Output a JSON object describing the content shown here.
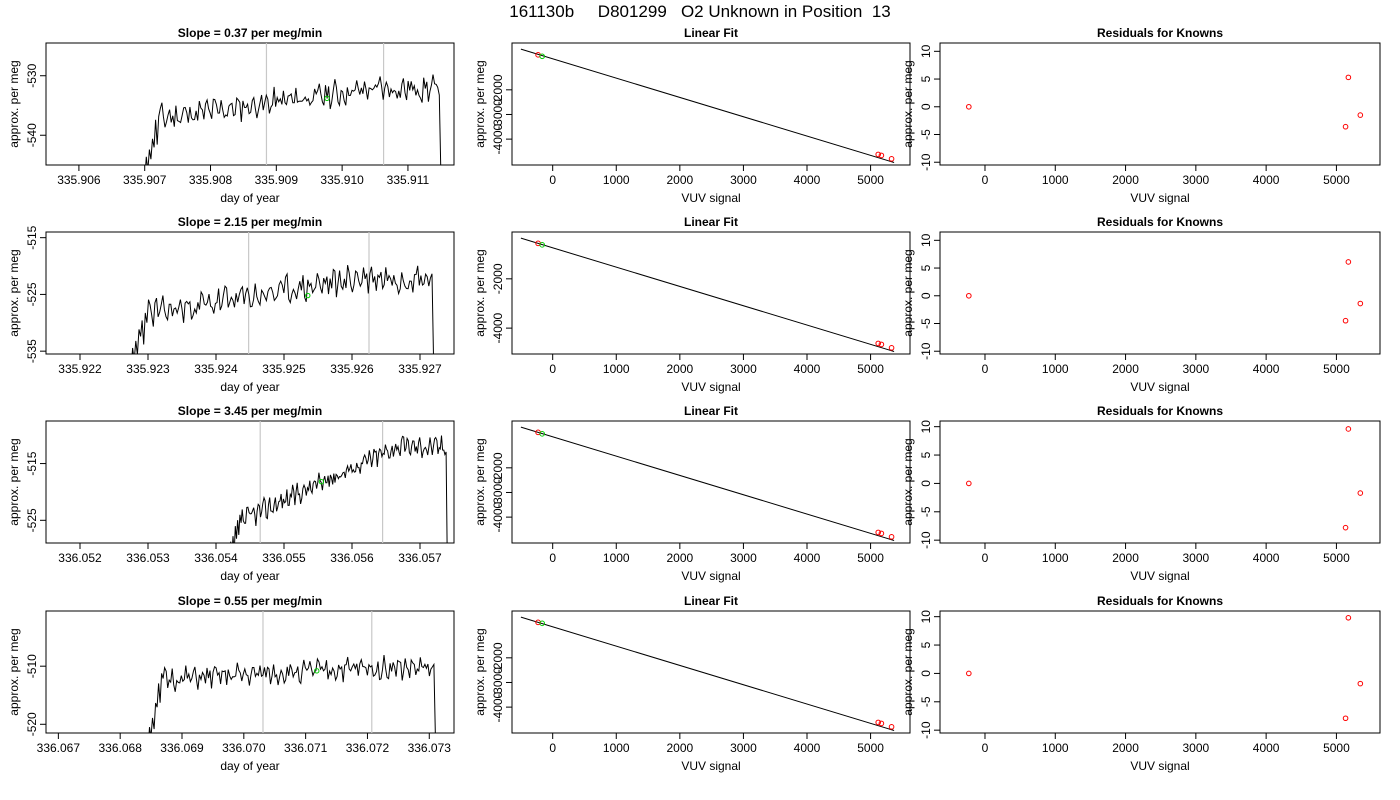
{
  "title": "161130b     D801299   O2 Unknown in Position  13",
  "colors": {
    "trace": "#000000",
    "gridline": "#c8c8c8",
    "known_point": "#ff0000",
    "unknown_point": "#00cc00",
    "fit_line": "#000000"
  },
  "rows": [
    {
      "time": {
        "title": "Slope =  0.37  per meg/min",
        "xlabel": "day of year",
        "ylabel": "approx. per meg",
        "xlim": [
          335.9055,
          335.9117
        ],
        "ylim": [
          -545,
          -524.5
        ],
        "xticks": [
          335.906,
          335.907,
          335.908,
          335.909,
          335.91,
          335.911
        ],
        "xtick_labels": [
          "335.906",
          "335.907",
          "335.908",
          "335.909",
          "335.910",
          "335.911"
        ],
        "yticks": [
          -530,
          -540
        ],
        "ytick_labels": [
          "-530",
          "-540"
        ],
        "vlines": [
          335.90885,
          335.91063
        ],
        "trace": {
          "x_start": 335.907,
          "x_end": 335.9115,
          "seed": 11,
          "base": [
            -537.5,
            -532.2
          ],
          "amp": 2.2,
          "head": [
            -546,
            -540
          ],
          "tail_end": -546
        },
        "unknown_marks": [
          {
            "x": 335.90977,
            "y": -533.8
          }
        ]
      },
      "fit": {
        "title": "Linear Fit",
        "xlabel": "VUV signal",
        "ylabel": "approx. per meg",
        "xlim": [
          -640,
          5620
        ],
        "ylim": [
          -5050,
          -100
        ],
        "xticks": [
          0,
          1000,
          2000,
          3000,
          4000,
          5000
        ],
        "xtick_labels": [
          "0",
          "1000",
          "2000",
          "3000",
          "4000",
          "5000"
        ],
        "yticks": [
          -2000,
          -3000,
          -4000
        ],
        "ytick_labels": [
          "-2000",
          "-3000",
          "-4000"
        ],
        "line": {
          "x": [
            -500,
            5370
          ],
          "y": [
            -350,
            -4950
          ]
        },
        "knowns": [
          {
            "x": -230,
            "y": -580
          },
          {
            "x": 5120,
            "y": -4620
          },
          {
            "x": 5170,
            "y": -4660
          },
          {
            "x": 5330,
            "y": -4800
          }
        ],
        "unknowns": [
          {
            "x": -165,
            "y": -640
          }
        ]
      },
      "resid": {
        "title": "Residuals for Knowns",
        "xlabel": "VUV signal",
        "ylabel": "approx. per meg",
        "xlim": [
          -640,
          5620
        ],
        "ylim": [
          -10.5,
          11.5
        ],
        "xticks": [
          0,
          1000,
          2000,
          3000,
          4000,
          5000
        ],
        "xtick_labels": [
          "0",
          "1000",
          "2000",
          "3000",
          "4000",
          "5000"
        ],
        "yticks": [
          -10,
          -5,
          0,
          5,
          10
        ],
        "ytick_labels": [
          "-10",
          "-5",
          "0",
          "5",
          "10"
        ],
        "points": [
          {
            "x": -230,
            "y": 0
          },
          {
            "x": 5130,
            "y": -3.6
          },
          {
            "x": 5170,
            "y": 5.3
          },
          {
            "x": 5340,
            "y": -1.5
          }
        ]
      }
    },
    {
      "time": {
        "title": "Slope =  2.15  per meg/min",
        "xlabel": "day of year",
        "ylabel": "approx. per meg",
        "xlim": [
          335.9215,
          335.9275
        ],
        "ylim": [
          -535.5,
          -514
        ],
        "xticks": [
          335.922,
          335.923,
          335.924,
          335.925,
          335.926,
          335.927
        ],
        "xtick_labels": [
          "335.922",
          "335.923",
          "335.924",
          "335.925",
          "335.926",
          "335.927"
        ],
        "yticks": [
          -515,
          -525,
          -535
        ],
        "ytick_labels": [
          "-515",
          "-525",
          "-535"
        ],
        "vlines": [
          335.92448,
          335.92625
        ],
        "trace": {
          "x_start": 335.92275,
          "x_end": 335.9272,
          "seed": 23,
          "base": [
            -529,
            -522
          ],
          "amp": 2.6,
          "head": [
            -537,
            -530
          ],
          "tail_end": -537
        },
        "unknown_marks": [
          {
            "x": 335.92535,
            "y": -525.2
          }
        ]
      },
      "fit": {
        "title": "Linear Fit",
        "xlabel": "VUV signal",
        "ylabel": "approx. per meg",
        "xlim": [
          -640,
          5620
        ],
        "ylim": [
          -5050,
          -100
        ],
        "xticks": [
          0,
          1000,
          2000,
          3000,
          4000,
          5000
        ],
        "xtick_labels": [
          "0",
          "1000",
          "2000",
          "3000",
          "4000",
          "5000"
        ],
        "yticks": [
          -2000,
          -4000
        ],
        "ytick_labels": [
          "-2000",
          "-4000"
        ],
        "line": {
          "x": [
            -500,
            5370
          ],
          "y": [
            -350,
            -4950
          ]
        },
        "knowns": [
          {
            "x": -230,
            "y": -560
          },
          {
            "x": 5120,
            "y": -4620
          },
          {
            "x": 5170,
            "y": -4660
          },
          {
            "x": 5330,
            "y": -4800
          }
        ],
        "unknowns": [
          {
            "x": -165,
            "y": -620
          }
        ]
      },
      "resid": {
        "title": "Residuals for Knowns",
        "xlabel": "VUV signal",
        "ylabel": "approx. per meg",
        "xlim": [
          -640,
          5620
        ],
        "ylim": [
          -10.5,
          11.5
        ],
        "xticks": [
          0,
          1000,
          2000,
          3000,
          4000,
          5000
        ],
        "xtick_labels": [
          "0",
          "1000",
          "2000",
          "3000",
          "4000",
          "5000"
        ],
        "yticks": [
          -10,
          -5,
          0,
          5,
          10
        ],
        "ytick_labels": [
          "-10",
          "-5",
          "0",
          "5",
          "10"
        ],
        "points": [
          {
            "x": -230,
            "y": 0
          },
          {
            "x": 5130,
            "y": -4.5
          },
          {
            "x": 5170,
            "y": 6.1
          },
          {
            "x": 5340,
            "y": -1.4
          }
        ]
      }
    },
    {
      "time": {
        "title": "Slope =  3.45  per meg/min",
        "xlabel": "day of year",
        "ylabel": "approx. per meg",
        "xlim": [
          336.0515,
          336.0575
        ],
        "ylim": [
          -529,
          -507.5
        ],
        "xticks": [
          336.052,
          336.053,
          336.054,
          336.055,
          336.056,
          336.057
        ],
        "xtick_labels": [
          "336.052",
          "336.053",
          "336.054",
          "336.055",
          "336.056",
          "336.057"
        ],
        "yticks": [
          -515,
          -525
        ],
        "ytick_labels": [
          "-515",
          "-525"
        ],
        "vlines": [
          336.05465,
          336.05645
        ],
        "trace": {
          "x_start": 336.0542,
          "x_end": 336.0574,
          "seed": 37,
          "base": [
            -526,
            -512
          ],
          "amp": 1.8,
          "head": [
            -531,
            -527
          ],
          "tail_end": -531
        },
        "unknown_marks": [
          {
            "x": 336.05555,
            "y": -518.2
          }
        ]
      },
      "fit": {
        "title": "Linear Fit",
        "xlabel": "VUV signal",
        "ylabel": "approx. per meg",
        "xlim": [
          -640,
          5620
        ],
        "ylim": [
          -5050,
          -100
        ],
        "xticks": [
          0,
          1000,
          2000,
          3000,
          4000,
          5000
        ],
        "xtick_labels": [
          "0",
          "1000",
          "2000",
          "3000",
          "4000",
          "5000"
        ],
        "yticks": [
          -2000,
          -3000,
          -4000
        ],
        "ytick_labels": [
          "-2000",
          "-3000",
          "-4000"
        ],
        "line": {
          "x": [
            -500,
            5370
          ],
          "y": [
            -350,
            -4950
          ]
        },
        "knowns": [
          {
            "x": -230,
            "y": -560
          },
          {
            "x": 5120,
            "y": -4620
          },
          {
            "x": 5170,
            "y": -4660
          },
          {
            "x": 5330,
            "y": -4800
          }
        ],
        "unknowns": [
          {
            "x": -165,
            "y": -620
          }
        ]
      },
      "resid": {
        "title": "Residuals for Knowns",
        "xlabel": "VUV signal",
        "ylabel": "approx. per meg",
        "xlim": [
          -640,
          5620
        ],
        "ylim": [
          -10.5,
          11.0
        ],
        "xticks": [
          0,
          1000,
          2000,
          3000,
          4000,
          5000
        ],
        "xtick_labels": [
          "0",
          "1000",
          "2000",
          "3000",
          "4000",
          "5000"
        ],
        "yticks": [
          -10,
          -5,
          0,
          5,
          10
        ],
        "ytick_labels": [
          "-10",
          "-5",
          "0",
          "5",
          "10"
        ],
        "points": [
          {
            "x": -230,
            "y": 0
          },
          {
            "x": 5130,
            "y": -7.8
          },
          {
            "x": 5170,
            "y": 9.6
          },
          {
            "x": 5340,
            "y": -1.7
          }
        ]
      }
    },
    {
      "time": {
        "title": "Slope =  0.55  per meg/min",
        "xlabel": "day of year",
        "ylabel": "approx. per meg",
        "xlim": [
          336.0668,
          336.0734
        ],
        "ylim": [
          -521.5,
          -500.5
        ],
        "xticks": [
          336.067,
          336.068,
          336.069,
          336.07,
          336.071,
          336.072,
          336.073
        ],
        "xtick_labels": [
          "336.067",
          "336.068",
          "336.069",
          "336.070",
          "336.071",
          "336.072",
          "336.073"
        ],
        "yticks": [
          -510,
          -520
        ],
        "ytick_labels": [
          "-510",
          "-520"
        ],
        "vlines": [
          336.07031,
          336.07207
        ],
        "trace": {
          "x_start": 336.06845,
          "x_end": 336.0731,
          "seed": 51,
          "base": [
            -512.5,
            -510.3
          ],
          "amp": 1.9,
          "head": [
            -523,
            -518
          ],
          "tail_end": -523
        },
        "unknown_marks": [
          {
            "x": 336.07118,
            "y": -510.8
          }
        ]
      },
      "fit": {
        "title": "Linear Fit",
        "xlabel": "VUV signal",
        "ylabel": "approx. per meg",
        "xlim": [
          -640,
          5620
        ],
        "ylim": [
          -5050,
          -100
        ],
        "xticks": [
          0,
          1000,
          2000,
          3000,
          4000,
          5000
        ],
        "xtick_labels": [
          "0",
          "1000",
          "2000",
          "3000",
          "4000",
          "5000"
        ],
        "yticks": [
          -2000,
          -3000,
          -4000
        ],
        "ytick_labels": [
          "-2000",
          "-3000",
          "-4000"
        ],
        "line": {
          "x": [
            -500,
            5370
          ],
          "y": [
            -350,
            -4950
          ]
        },
        "knowns": [
          {
            "x": -230,
            "y": -560
          },
          {
            "x": 5120,
            "y": -4620
          },
          {
            "x": 5170,
            "y": -4660
          },
          {
            "x": 5330,
            "y": -4800
          }
        ],
        "unknowns": [
          {
            "x": -165,
            "y": -600
          }
        ]
      },
      "resid": {
        "title": "Residuals for Knowns",
        "xlabel": "VUV signal",
        "ylabel": "approx. per meg",
        "xlim": [
          -640,
          5620
        ],
        "ylim": [
          -10.5,
          11.0
        ],
        "xticks": [
          0,
          1000,
          2000,
          3000,
          4000,
          5000
        ],
        "xtick_labels": [
          "0",
          "1000",
          "2000",
          "3000",
          "4000",
          "5000"
        ],
        "yticks": [
          -10,
          -5,
          0,
          5,
          10
        ],
        "ytick_labels": [
          "-10",
          "-5",
          "0",
          "5",
          "10"
        ],
        "points": [
          {
            "x": -230,
            "y": 0
          },
          {
            "x": 5130,
            "y": -7.9
          },
          {
            "x": 5170,
            "y": 9.8
          },
          {
            "x": 5340,
            "y": -1.8
          }
        ]
      }
    }
  ],
  "chart_data": [
    {
      "type": "line",
      "title": "Slope =  0.37  per meg/min",
      "xlabel": "day of year",
      "ylabel": "approx. per meg",
      "xlim": [
        335.9055,
        335.9117
      ],
      "ylim": [
        -545,
        -524.5
      ],
      "grid": false,
      "vertical_markers": [
        335.90885,
        335.91063
      ]
    },
    {
      "type": "scatter",
      "title": "Linear Fit",
      "xlabel": "VUV signal",
      "ylabel": "approx. per meg",
      "xlim": [
        -640,
        5620
      ],
      "ylim": [
        -5050,
        -100
      ],
      "series": [
        {
          "values": [
            [
              -230,
              -580
            ],
            [
              5120,
              -4620
            ],
            [
              5170,
              -4660
            ],
            [
              5330,
              -4800
            ]
          ]
        }
      ]
    },
    {
      "type": "scatter",
      "title": "Residuals for Knowns",
      "xlabel": "VUV signal",
      "ylabel": "approx. per meg",
      "x": [
        -230,
        5130,
        5170,
        5340
      ],
      "y": [
        0,
        -3.6,
        5.3,
        -1.5
      ]
    },
    {
      "type": "line",
      "title": "Slope =  2.15  per meg/min",
      "xlabel": "day of year",
      "ylabel": "approx. per meg",
      "xlim": [
        335.9215,
        335.9275
      ],
      "ylim": [
        -535.5,
        -514
      ],
      "vertical_markers": [
        335.92448,
        335.92625
      ]
    },
    {
      "type": "scatter",
      "title": "Linear Fit",
      "xlabel": "VUV signal",
      "ylabel": "approx. per meg",
      "series": [
        {
          "values": [
            [
              -230,
              -560
            ],
            [
              5120,
              -4620
            ],
            [
              5170,
              -4660
            ],
            [
              5330,
              -4800
            ]
          ]
        }
      ]
    },
    {
      "type": "scatter",
      "title": "Residuals for Knowns",
      "x": [
        -230,
        5130,
        5170,
        5340
      ],
      "y": [
        0,
        -4.5,
        6.1,
        -1.4
      ]
    },
    {
      "type": "line",
      "title": "Slope =  3.45  per meg/min",
      "xlabel": "day of year",
      "ylabel": "approx. per meg",
      "xlim": [
        336.0515,
        336.0575
      ],
      "ylim": [
        -529,
        -507.5
      ],
      "vertical_markers": [
        336.05465,
        336.05645
      ]
    },
    {
      "type": "scatter",
      "title": "Linear Fit",
      "xlabel": "VUV signal",
      "ylabel": "approx. per meg",
      "series": [
        {
          "values": [
            [
              -230,
              -560
            ],
            [
              5120,
              -4620
            ],
            [
              5170,
              -4660
            ],
            [
              5330,
              -4800
            ]
          ]
        }
      ]
    },
    {
      "type": "scatter",
      "title": "Residuals for Knowns",
      "x": [
        -230,
        5130,
        5170,
        5340
      ],
      "y": [
        0,
        -7.8,
        9.6,
        -1.7
      ]
    },
    {
      "type": "line",
      "title": "Slope =  0.55  per meg/min",
      "xlabel": "day of year",
      "ylabel": "approx. per meg",
      "xlim": [
        336.0668,
        336.0734
      ],
      "ylim": [
        -521.5,
        -500.5
      ],
      "vertical_markers": [
        336.07031,
        336.07207
      ]
    },
    {
      "type": "scatter",
      "title": "Linear Fit",
      "xlabel": "VUV signal",
      "ylabel": "approx. per meg",
      "series": [
        {
          "values": [
            [
              -230,
              -560
            ],
            [
              5120,
              -4620
            ],
            [
              5170,
              -4660
            ],
            [
              5330,
              -4800
            ]
          ]
        }
      ]
    },
    {
      "type": "scatter",
      "title": "Residuals for Knowns",
      "x": [
        -230,
        5130,
        5170,
        5340
      ],
      "y": [
        0,
        -7.9,
        9.8,
        -1.8
      ]
    }
  ]
}
